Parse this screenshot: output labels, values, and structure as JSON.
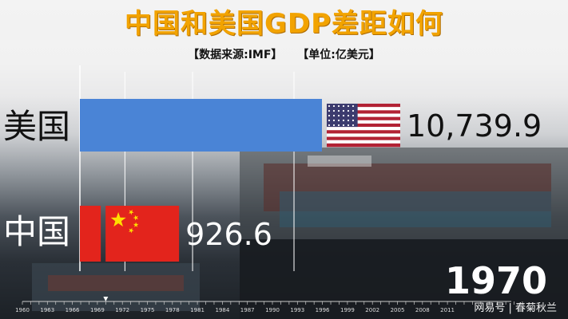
{
  "title": "中国和美国GDP差距如何",
  "subtitle": {
    "source": "【数据来源:IMF】",
    "unit": "【单位:亿美元】"
  },
  "watermark": "网易号 | 春菊秋兰",
  "colors": {
    "title": "#f2a300",
    "usa_bar": "#4a84d6",
    "china_bar": "#e3241c"
  },
  "chart_data": {
    "type": "bar",
    "orientation": "horizontal",
    "categories": [
      "美国",
      "中国"
    ],
    "values": [
      10739.9,
      926.6
    ],
    "value_labels": [
      "10,739.9",
      "926.6"
    ],
    "flags": [
      "usa-flag-icon",
      "china-flag-icon"
    ],
    "year": "1970",
    "timeline_ticks": [
      "1960",
      "1963",
      "1966",
      "1969",
      "1972",
      "1975",
      "1978",
      "1981",
      "1984",
      "1987",
      "1990",
      "1993",
      "1996",
      "1999",
      "2002",
      "2005",
      "2008",
      "2011"
    ],
    "timeline_current": "1970",
    "xlim": [
      0,
      13000
    ],
    "grid": true
  }
}
